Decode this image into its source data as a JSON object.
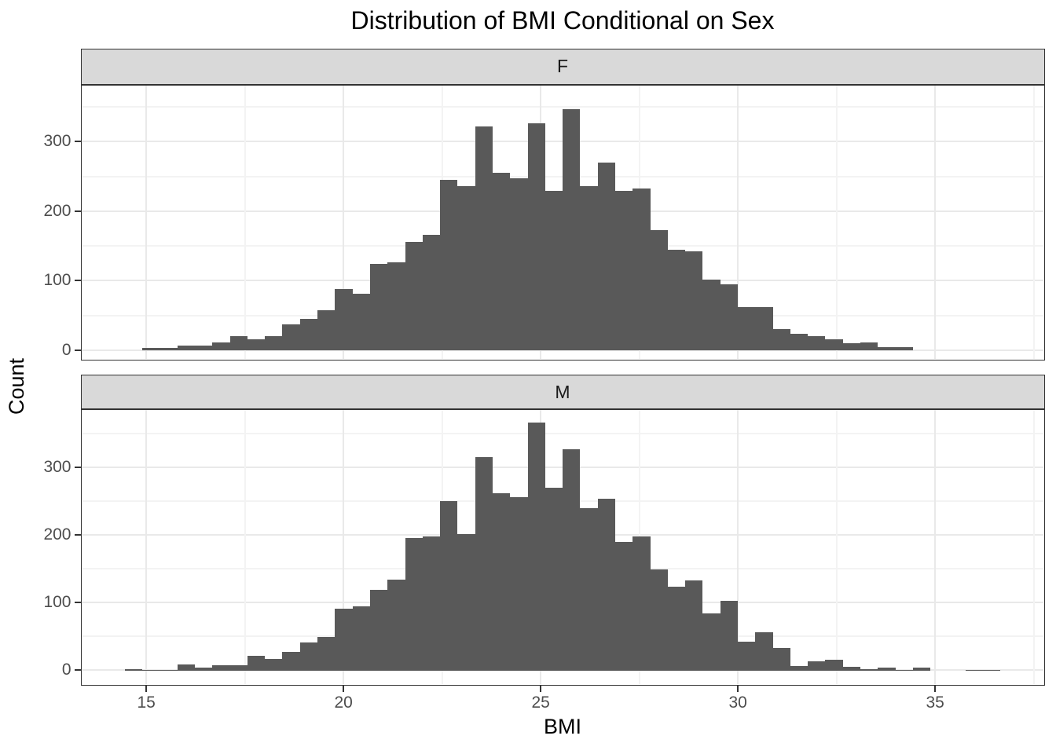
{
  "chart_data": {
    "type": "histogram",
    "title": "Distribution of BMI Conditional on Sex",
    "xlabel": "BMI",
    "ylabel": "Count",
    "legend": "none",
    "grid": true,
    "x_ticks": [
      15,
      20,
      25,
      30,
      35
    ],
    "x_minor_ticks": [
      17.5,
      22.5,
      27.5,
      32.5,
      37.5
    ],
    "y_ticks": [
      0,
      100,
      200,
      300
    ],
    "y_minor_ticks": [
      50,
      150,
      250,
      350
    ],
    "xlim": [
      13.4,
      37.7
    ],
    "ylim": [
      0,
      385
    ],
    "bin_width": 0.444,
    "facets": [
      {
        "label": "F",
        "start_bmi": 14.9,
        "counts": [
          3,
          3,
          7,
          7,
          11,
          20,
          16,
          20,
          37,
          45,
          58,
          88,
          81,
          124,
          126,
          156,
          166,
          245,
          236,
          322,
          255,
          247,
          326,
          229,
          346,
          236,
          270,
          229,
          232,
          173,
          144,
          142,
          102,
          95,
          62,
          62,
          31,
          24,
          20,
          16,
          10,
          11,
          5,
          5
        ]
      },
      {
        "label": "M",
        "start_bmi": 14.456,
        "counts": [
          2,
          1,
          1,
          9,
          4,
          8,
          8,
          22,
          17,
          28,
          42,
          50,
          92,
          95,
          119,
          135,
          196,
          198,
          251,
          202,
          315,
          262,
          256,
          366,
          270,
          327,
          240,
          254,
          190,
          198,
          149,
          124,
          133,
          85,
          103,
          43,
          57,
          34,
          7,
          14,
          16,
          6,
          2,
          5,
          1,
          4,
          0,
          0,
          1,
          1
        ]
      }
    ],
    "colors": {
      "bar": "#595959",
      "strip_bg": "#d9d9d9",
      "panel_bg": "#ffffff",
      "panel_border": "#333333",
      "grid_major": "#e9e9e9",
      "grid_minor": "#f3f3f3",
      "tick": "#333333",
      "axis_text": "#4d4d4d",
      "title_text": "#000000",
      "background": "#ffffff"
    }
  }
}
